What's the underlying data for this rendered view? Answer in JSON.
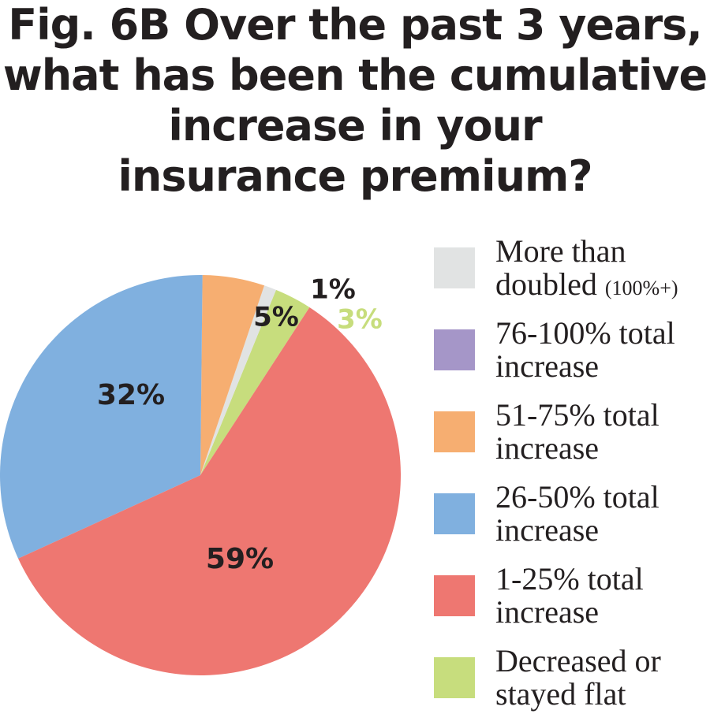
{
  "title_lines": [
    "Fig. 6B Over the past 3 years,",
    "what has been the cumulative",
    "increase in your",
    "insurance premium?"
  ],
  "chart_data": {
    "type": "pie",
    "title": "Fig. 6B Over the past 3 years, what has been the cumulative increase in your insurance premium?",
    "slices": [
      {
        "key": "flat",
        "label": "Decreased or stayed flat",
        "value": 3,
        "value_label": "3%",
        "color": "#c7dd7d",
        "label_color": "#c7dd7d"
      },
      {
        "key": "doubled",
        "label": "More than doubled (100%+)",
        "value": 1,
        "value_label": "1%",
        "color": "#e1e3e3",
        "label_color": "#231f20"
      },
      {
        "key": "r51_75",
        "label": "51-75% total increase",
        "value": 5,
        "value_label": "5%",
        "color": "#f6ae71",
        "label_color": "#231f20"
      },
      {
        "key": "r26_50",
        "label": "26-50% total increase",
        "value": 32,
        "value_label": "32%",
        "color": "#80b0df",
        "label_color": "#231f20"
      },
      {
        "key": "r1_25",
        "label": "1-25% total increase",
        "value": 59,
        "value_label": "59%",
        "color": "#ee7771",
        "label_color": "#231f20"
      }
    ],
    "legend": [
      {
        "line1": "More than",
        "line2": "doubled",
        "suffix": "(100%+)",
        "color": "#e1e3e3"
      },
      {
        "line1": "76-100% total",
        "line2": "increase",
        "color": "#a596c8"
      },
      {
        "line1": "51-75% total",
        "line2": "increase",
        "color": "#f6ae71"
      },
      {
        "line1": "26-50% total",
        "line2": "increase",
        "color": "#80b0df"
      },
      {
        "line1": "1-25% total",
        "line2": "increase",
        "color": "#ee7771"
      },
      {
        "line1": "Decreased or",
        "line2": "stayed flat",
        "color": "#c7dd7d"
      }
    ],
    "legend_placement": "right"
  }
}
